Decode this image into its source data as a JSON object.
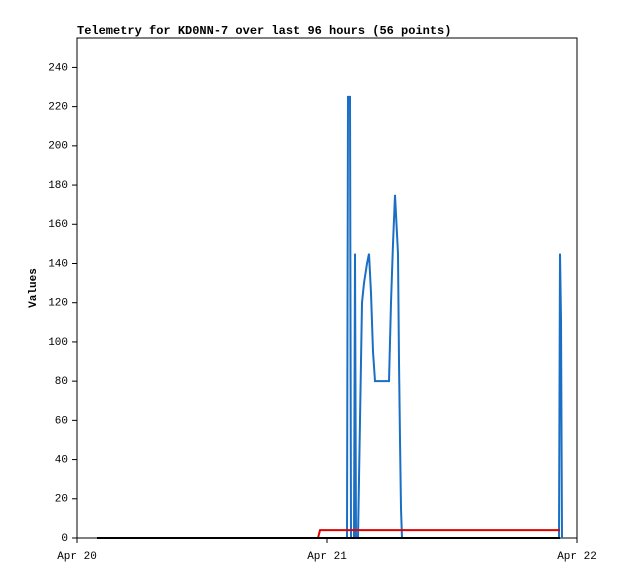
{
  "chart_data": {
    "type": "line",
    "title": "Telemetry for KD0NN-7 over last 96 hours (56 points)",
    "y_label": "Values",
    "xlim": [
      0,
      2
    ],
    "xticks": [
      {
        "value": 0,
        "label": "Apr 20"
      },
      {
        "value": 1,
        "label": "Apr 21"
      },
      {
        "value": 2,
        "label": "Apr 22"
      }
    ],
    "ylim": [
      0,
      255
    ],
    "yticks": [
      0,
      20,
      40,
      60,
      80,
      100,
      120,
      140,
      160,
      180,
      200,
      220,
      240
    ],
    "grid": false,
    "series": [
      {
        "color": "#1a6fc4",
        "x": [
          0.08,
          1.08,
          1.084,
          1.092,
          1.096,
          1.108,
          1.112,
          1.116,
          1.124,
          1.132,
          1.14,
          1.148,
          1.16,
          1.168,
          1.176,
          1.184,
          1.192,
          1.248,
          1.256,
          1.264,
          1.272,
          1.276,
          1.284,
          1.288,
          1.292,
          1.296,
          1.3,
          1.928,
          1.932,
          1.936,
          1.94
        ],
        "values": [
          0,
          0,
          225,
          225,
          0,
          0,
          145,
          0,
          0,
          60,
          120,
          130,
          140,
          145,
          125,
          95,
          80,
          80,
          120,
          150,
          175,
          165,
          145,
          90,
          50,
          15,
          0,
          0,
          145,
          112,
          0
        ]
      },
      {
        "color": "#e00000",
        "x": [
          0.08,
          0.964,
          0.972,
          1.932
        ],
        "values": [
          0,
          0,
          4,
          4
        ]
      },
      {
        "color": "#000000",
        "x": [
          0.08,
          1.932
        ],
        "values": [
          0,
          0
        ]
      }
    ]
  }
}
